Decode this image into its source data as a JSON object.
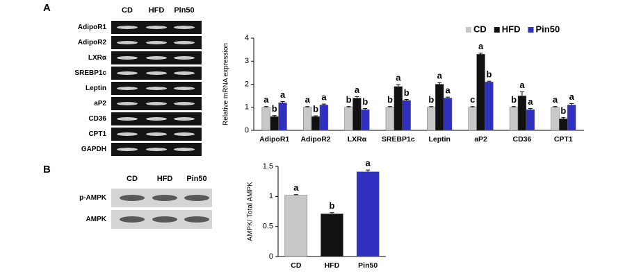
{
  "panel_labels": [
    "A",
    "B"
  ],
  "gels": [
    {
      "lanes": [
        "CD",
        "HFD",
        "Pin50"
      ],
      "lane_colors": [
        "#000000",
        "#d01010",
        "#2a2acc"
      ],
      "rows": [
        "AdipoR1",
        "AdipoR2",
        "LXRα",
        "SREBP1c",
        "Leptin",
        "aP2",
        "CD36",
        "CPT1",
        "GAPDH"
      ]
    },
    {
      "lanes": [
        "CD",
        "HFD",
        "Pin50"
      ],
      "lane_colors": [
        "#000000",
        "#d01010",
        "#2a2acc"
      ],
      "rows": [
        "p-AMPK",
        "AMPK"
      ]
    }
  ],
  "chart_data": [
    {
      "type": "bar",
      "ylabel": "Relative mRNA expression",
      "categories": [
        "AdipoR1",
        "AdipoR2",
        "LXRα",
        "SREBP1c",
        "Leptin",
        "aP2",
        "CD36",
        "CPT1"
      ],
      "series": [
        {
          "name": "CD",
          "color": "#c8c8c8",
          "values": [
            1,
            1,
            1,
            1,
            1,
            1,
            1,
            1
          ],
          "errors": [
            0.03,
            0.03,
            0.03,
            0.03,
            0.03,
            0.03,
            0.03,
            0.03
          ],
          "letters": [
            "a",
            "a",
            "b",
            "b",
            "b",
            "c",
            "b",
            "a"
          ]
        },
        {
          "name": "HFD",
          "color": "#111111",
          "values": [
            0.6,
            0.6,
            1.4,
            1.9,
            2.0,
            3.3,
            1.5,
            0.5
          ],
          "errors": [
            0.04,
            0.03,
            0.06,
            0.08,
            0.07,
            0.05,
            0.17,
            0.05
          ],
          "letters": [
            "b",
            "b",
            "a",
            "a",
            "a",
            "a",
            "a",
            "b"
          ]
        },
        {
          "name": "Pin50",
          "color": "#3030c0",
          "values": [
            1.2,
            1.1,
            0.9,
            1.3,
            1.4,
            2.1,
            0.9,
            1.1
          ],
          "errors": [
            0.05,
            0.04,
            0.05,
            0.04,
            0.04,
            0.03,
            0.05,
            0.06
          ],
          "letters": [
            "a",
            "a",
            "b",
            "b",
            "a",
            "b",
            "a",
            "a"
          ]
        }
      ],
      "letter_color": "#cc1010",
      "ylim": [
        0,
        4
      ],
      "yticks": [
        0,
        1,
        2,
        3,
        4
      ],
      "legend": "upper right"
    },
    {
      "type": "bar",
      "ylabel": "AMPK/ Total AMPK",
      "categories": [
        "CD",
        "HFD",
        "Pin50"
      ],
      "values": [
        1.02,
        0.71,
        1.41
      ],
      "errors": [
        0.01,
        0.02,
        0.03
      ],
      "colors": [
        "#c8c8c8",
        "#111111",
        "#3030c0"
      ],
      "letters": [
        "a",
        "b",
        "a"
      ],
      "letter_color": "#cc1010",
      "ylim": [
        0,
        1.5
      ],
      "yticks": [
        0,
        0.5,
        1,
        1.5
      ]
    }
  ]
}
